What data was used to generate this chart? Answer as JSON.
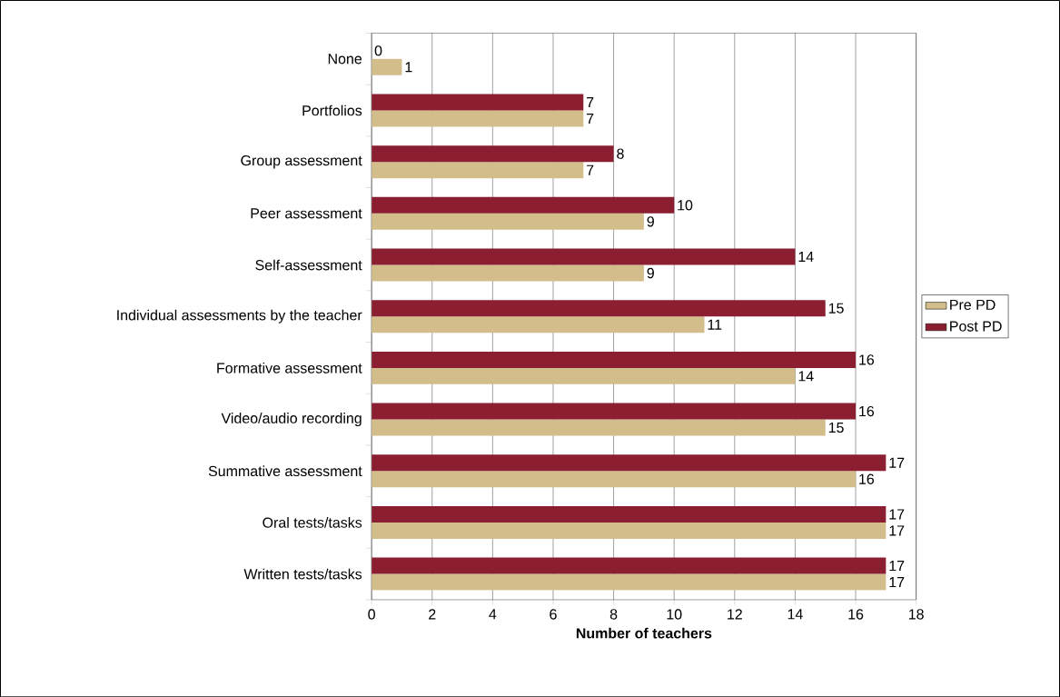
{
  "chart_data": {
    "type": "bar",
    "orientation": "horizontal",
    "categories": [
      "None",
      "Portfolios",
      "Group assessment",
      "Peer assessment",
      "Self-assessment",
      "Individual assessments by the teacher",
      "Formative assessment",
      "Video/audio recording",
      "Summative assessment",
      "Oral tests/tasks",
      "Written tests/tasks"
    ],
    "series": [
      {
        "name": "Pre PD",
        "color": "#d3be8b",
        "values": [
          1,
          7,
          7,
          9,
          9,
          11,
          14,
          15,
          16,
          17,
          17
        ]
      },
      {
        "name": "Post PD",
        "color": "#8b1e30",
        "values": [
          0,
          7,
          8,
          10,
          14,
          15,
          16,
          16,
          17,
          17,
          17
        ]
      }
    ],
    "xlabel": "Number of teachers",
    "xlim": [
      0,
      18
    ],
    "xticks": [
      0,
      2,
      4,
      6,
      8,
      10,
      12,
      14,
      16,
      18
    ],
    "grid": "x",
    "legend": "right",
    "data_labels": true
  }
}
